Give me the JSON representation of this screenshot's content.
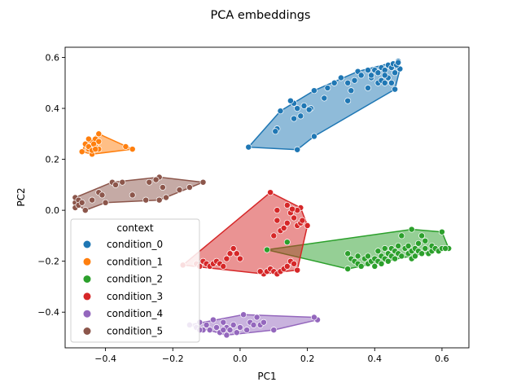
{
  "chart_data": {
    "type": "scatter",
    "title": "PCA embeddings",
    "xlabel": "PC1",
    "ylabel": "PC2",
    "xlim": [
      -0.52,
      0.68
    ],
    "ylim": [
      -0.54,
      0.64
    ],
    "xticks": [
      -0.4,
      -0.2,
      0.0,
      0.2,
      0.4,
      0.6
    ],
    "yticks": [
      -0.4,
      -0.2,
      0.0,
      0.2,
      0.4,
      0.6
    ],
    "xtick_labels": [
      "−0.4",
      "−0.2",
      "0.0",
      "0.2",
      "0.4",
      "0.6"
    ],
    "ytick_labels": [
      "−0.4",
      "−0.2",
      "0.0",
      "0.2",
      "0.4",
      "0.6"
    ],
    "grid": false,
    "legend": {
      "title": "context",
      "placement": "lower-left"
    },
    "series": [
      {
        "name": "condition_0",
        "color": "#1f77b4",
        "hull": [
          [
            0.025,
            0.248
          ],
          [
            0.17,
            0.238
          ],
          [
            0.22,
            0.29
          ],
          [
            0.46,
            0.475
          ],
          [
            0.475,
            0.555
          ],
          [
            0.47,
            0.585
          ],
          [
            0.35,
            0.545
          ],
          [
            0.22,
            0.47
          ],
          [
            0.12,
            0.39
          ]
        ],
        "points": [
          [
            0.025,
            0.248
          ],
          [
            0.17,
            0.238
          ],
          [
            0.22,
            0.29
          ],
          [
            0.46,
            0.475
          ],
          [
            0.475,
            0.555
          ],
          [
            0.47,
            0.585
          ],
          [
            0.35,
            0.545
          ],
          [
            0.22,
            0.47
          ],
          [
            0.12,
            0.39
          ],
          [
            0.11,
            0.32
          ],
          [
            0.16,
            0.36
          ],
          [
            0.18,
            0.37
          ],
          [
            0.21,
            0.4
          ],
          [
            0.25,
            0.44
          ],
          [
            0.26,
            0.48
          ],
          [
            0.28,
            0.5
          ],
          [
            0.3,
            0.52
          ],
          [
            0.32,
            0.5
          ],
          [
            0.33,
            0.47
          ],
          [
            0.34,
            0.51
          ],
          [
            0.36,
            0.53
          ],
          [
            0.38,
            0.55
          ],
          [
            0.39,
            0.52
          ],
          [
            0.4,
            0.55
          ],
          [
            0.41,
            0.54
          ],
          [
            0.42,
            0.56
          ],
          [
            0.43,
            0.55
          ],
          [
            0.44,
            0.57
          ],
          [
            0.45,
            0.56
          ],
          [
            0.455,
            0.575
          ],
          [
            0.46,
            0.54
          ],
          [
            0.465,
            0.57
          ],
          [
            0.47,
            0.58
          ],
          [
            0.41,
            0.5
          ],
          [
            0.42,
            0.51
          ],
          [
            0.43,
            0.5
          ],
          [
            0.44,
            0.52
          ],
          [
            0.45,
            0.5
          ],
          [
            0.16,
            0.42
          ],
          [
            0.17,
            0.4
          ],
          [
            0.15,
            0.43
          ],
          [
            0.19,
            0.41
          ],
          [
            0.205,
            0.395
          ],
          [
            0.32,
            0.43
          ],
          [
            0.38,
            0.48
          ],
          [
            0.105,
            0.31
          ],
          [
            0.39,
            0.53
          ],
          [
            0.43,
            0.53
          ]
        ]
      },
      {
        "name": "condition_1",
        "color": "#ff7f0e",
        "hull": [
          [
            -0.47,
            0.23
          ],
          [
            -0.44,
            0.22
          ],
          [
            -0.32,
            0.24
          ],
          [
            -0.42,
            0.3
          ],
          [
            -0.46,
            0.26
          ]
        ],
        "points": [
          [
            -0.47,
            0.23
          ],
          [
            -0.44,
            0.22
          ],
          [
            -0.32,
            0.24
          ],
          [
            -0.42,
            0.3
          ],
          [
            -0.46,
            0.26
          ],
          [
            -0.45,
            0.24
          ],
          [
            -0.44,
            0.25
          ],
          [
            -0.43,
            0.25
          ],
          [
            -0.44,
            0.27
          ],
          [
            -0.43,
            0.28
          ],
          [
            -0.45,
            0.28
          ],
          [
            -0.42,
            0.27
          ],
          [
            -0.42,
            0.24
          ],
          [
            -0.45,
            0.25
          ],
          [
            -0.34,
            0.25
          ],
          [
            -0.435,
            0.26
          ],
          [
            -0.44,
            0.235
          ],
          [
            -0.43,
            0.24
          ]
        ]
      },
      {
        "name": "condition_2",
        "color": "#2ca02c",
        "hull": [
          [
            0.08,
            -0.155
          ],
          [
            0.32,
            -0.23
          ],
          [
            0.62,
            -0.15
          ],
          [
            0.6,
            -0.085
          ],
          [
            0.51,
            -0.075
          ]
        ],
        "points": [
          [
            0.08,
            -0.155
          ],
          [
            0.32,
            -0.23
          ],
          [
            0.62,
            -0.15
          ],
          [
            0.6,
            -0.085
          ],
          [
            0.51,
            -0.075
          ],
          [
            0.14,
            -0.125
          ],
          [
            0.32,
            -0.17
          ],
          [
            0.33,
            -0.19
          ],
          [
            0.34,
            -0.2
          ],
          [
            0.35,
            -0.21
          ],
          [
            0.35,
            -0.18
          ],
          [
            0.36,
            -0.22
          ],
          [
            0.37,
            -0.19
          ],
          [
            0.38,
            -0.21
          ],
          [
            0.38,
            -0.18
          ],
          [
            0.39,
            -0.2
          ],
          [
            0.4,
            -0.22
          ],
          [
            0.4,
            -0.19
          ],
          [
            0.41,
            -0.2
          ],
          [
            0.41,
            -0.16
          ],
          [
            0.42,
            -0.18
          ],
          [
            0.42,
            -0.21
          ],
          [
            0.43,
            -0.19
          ],
          [
            0.43,
            -0.15
          ],
          [
            0.44,
            -0.17
          ],
          [
            0.44,
            -0.2
          ],
          [
            0.45,
            -0.18
          ],
          [
            0.45,
            -0.15
          ],
          [
            0.46,
            -0.19
          ],
          [
            0.46,
            -0.16
          ],
          [
            0.47,
            -0.17
          ],
          [
            0.47,
            -0.14
          ],
          [
            0.48,
            -0.18
          ],
          [
            0.48,
            -0.1
          ],
          [
            0.49,
            -0.15
          ],
          [
            0.5,
            -0.17
          ],
          [
            0.5,
            -0.14
          ],
          [
            0.51,
            -0.16
          ],
          [
            0.51,
            -0.19
          ],
          [
            0.52,
            -0.15
          ],
          [
            0.52,
            -0.18
          ],
          [
            0.53,
            -0.16
          ],
          [
            0.53,
            -0.13
          ],
          [
            0.54,
            -0.17
          ],
          [
            0.55,
            -0.12
          ],
          [
            0.55,
            -0.15
          ],
          [
            0.56,
            -0.17
          ],
          [
            0.57,
            -0.16
          ],
          [
            0.57,
            -0.14
          ],
          [
            0.58,
            -0.15
          ],
          [
            0.59,
            -0.16
          ],
          [
            0.6,
            -0.15
          ],
          [
            0.61,
            -0.15
          ],
          [
            0.54,
            -0.1
          ]
        ]
      },
      {
        "name": "condition_3",
        "color": "#d62728",
        "hull": [
          [
            -0.17,
            -0.215
          ],
          [
            0.07,
            -0.25
          ],
          [
            0.17,
            -0.235
          ],
          [
            0.2,
            -0.06
          ],
          [
            0.18,
            0.01
          ],
          [
            0.09,
            0.07
          ]
        ],
        "points": [
          [
            -0.17,
            -0.215
          ],
          [
            0.07,
            -0.25
          ],
          [
            0.17,
            -0.235
          ],
          [
            0.2,
            -0.06
          ],
          [
            0.18,
            0.01
          ],
          [
            0.09,
            0.07
          ],
          [
            -0.13,
            -0.21
          ],
          [
            -0.12,
            -0.22
          ],
          [
            -0.11,
            -0.2
          ],
          [
            -0.1,
            -0.21
          ],
          [
            -0.09,
            -0.22
          ],
          [
            -0.08,
            -0.21
          ],
          [
            -0.07,
            -0.2
          ],
          [
            -0.06,
            -0.21
          ],
          [
            -0.05,
            -0.22
          ],
          [
            -0.04,
            -0.19
          ],
          [
            -0.03,
            -0.17
          ],
          [
            -0.02,
            -0.15
          ],
          [
            -0.01,
            -0.17
          ],
          [
            0.0,
            -0.19
          ],
          [
            0.06,
            -0.24
          ],
          [
            0.08,
            -0.24
          ],
          [
            0.09,
            -0.23
          ],
          [
            0.1,
            -0.24
          ],
          [
            0.11,
            -0.25
          ],
          [
            0.12,
            -0.24
          ],
          [
            0.13,
            -0.23
          ],
          [
            0.14,
            -0.22
          ],
          [
            0.15,
            -0.2
          ],
          [
            0.16,
            -0.21
          ],
          [
            0.1,
            -0.1
          ],
          [
            0.12,
            -0.08
          ],
          [
            0.14,
            -0.05
          ],
          [
            0.11,
            -0.04
          ],
          [
            0.15,
            -0.01
          ],
          [
            0.16,
            -0.03
          ],
          [
            0.17,
            -0.06
          ],
          [
            0.18,
            -0.05
          ],
          [
            0.185,
            -0.04
          ],
          [
            0.17,
            0.0
          ],
          [
            0.14,
            0.02
          ],
          [
            0.11,
            0.0
          ],
          [
            0.13,
            -0.07
          ],
          [
            0.155,
            0.005
          ]
        ]
      },
      {
        "name": "condition_4",
        "color": "#9467bd",
        "hull": [
          [
            -0.15,
            -0.45
          ],
          [
            -0.04,
            -0.49
          ],
          [
            0.1,
            -0.47
          ],
          [
            0.23,
            -0.43
          ],
          [
            0.22,
            -0.42
          ],
          [
            0.01,
            -0.41
          ]
        ],
        "points": [
          [
            -0.15,
            -0.45
          ],
          [
            -0.04,
            -0.49
          ],
          [
            0.1,
            -0.47
          ],
          [
            0.23,
            -0.43
          ],
          [
            0.22,
            -0.42
          ],
          [
            0.01,
            -0.41
          ],
          [
            -0.13,
            -0.46
          ],
          [
            -0.12,
            -0.44
          ],
          [
            -0.11,
            -0.47
          ],
          [
            -0.1,
            -0.45
          ],
          [
            -0.09,
            -0.47
          ],
          [
            -0.08,
            -0.43
          ],
          [
            -0.07,
            -0.46
          ],
          [
            -0.06,
            -0.48
          ],
          [
            -0.05,
            -0.44
          ],
          [
            -0.04,
            -0.46
          ],
          [
            -0.03,
            -0.47
          ],
          [
            -0.02,
            -0.45
          ],
          [
            -0.01,
            -0.48
          ],
          [
            0.0,
            -0.46
          ],
          [
            0.02,
            -0.47
          ],
          [
            0.03,
            -0.44
          ],
          [
            0.04,
            -0.45
          ],
          [
            0.05,
            -0.42
          ],
          [
            0.06,
            -0.45
          ],
          [
            0.07,
            -0.44
          ],
          [
            -0.12,
            -0.47
          ],
          [
            -0.05,
            -0.47
          ]
        ]
      },
      {
        "name": "condition_5",
        "color": "#8c564b",
        "hull": [
          [
            -0.49,
            0.03
          ],
          [
            -0.46,
            0.0
          ],
          [
            -0.4,
            0.03
          ],
          [
            -0.24,
            0.04
          ],
          [
            -0.11,
            0.11
          ],
          [
            -0.24,
            0.13
          ],
          [
            -0.38,
            0.11
          ],
          [
            -0.49,
            0.05
          ]
        ],
        "points": [
          [
            -0.49,
            0.03
          ],
          [
            -0.46,
            0.0
          ],
          [
            -0.4,
            0.03
          ],
          [
            -0.24,
            0.04
          ],
          [
            -0.11,
            0.11
          ],
          [
            -0.24,
            0.13
          ],
          [
            -0.38,
            0.11
          ],
          [
            -0.49,
            0.05
          ],
          [
            -0.49,
            0.01
          ],
          [
            -0.48,
            0.04
          ],
          [
            -0.48,
            0.02
          ],
          [
            -0.44,
            0.04
          ],
          [
            -0.42,
            0.07
          ],
          [
            -0.41,
            0.06
          ],
          [
            -0.37,
            0.1
          ],
          [
            -0.35,
            0.11
          ],
          [
            -0.32,
            0.06
          ],
          [
            -0.28,
            0.04
          ],
          [
            -0.25,
            0.12
          ],
          [
            -0.27,
            0.11
          ],
          [
            -0.23,
            0.09
          ],
          [
            -0.22,
            0.05
          ],
          [
            -0.47,
            0.03
          ],
          [
            -0.18,
            0.08
          ],
          [
            -0.15,
            0.09
          ]
        ]
      }
    ]
  }
}
